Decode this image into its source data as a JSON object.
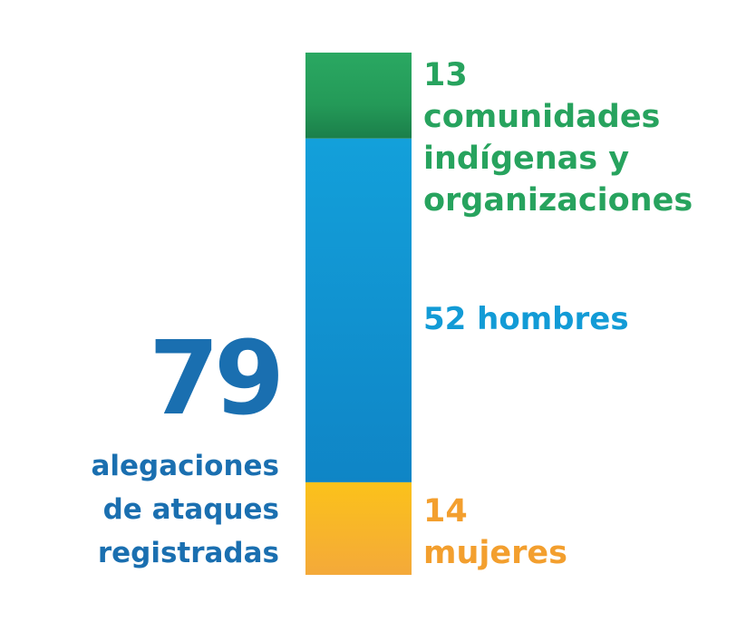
{
  "total": {
    "value": "79",
    "caption_lines": [
      "alegaciones",
      "de ataques",
      "registradas"
    ],
    "color": "#1a6fb0"
  },
  "chart_data": {
    "type": "bar",
    "stacked": true,
    "orientation": "vertical",
    "total": 79,
    "categories": [
      "comunidades indígenas y organizaciones",
      "hombres",
      "mujeres"
    ],
    "values": [
      13,
      52,
      14
    ],
    "labels": [
      {
        "number": "13",
        "lines": [
          "comunidades",
          "indígenas y",
          "organizaciones"
        ]
      },
      {
        "number": "52",
        "lines": [
          "hombres"
        ]
      },
      {
        "number": "14",
        "lines": [
          "mujeres"
        ]
      }
    ],
    "stack_order_top_to_bottom": [
      "comunidades indígenas y organizaciones",
      "hombres",
      "mujeres"
    ],
    "colors": {
      "comunidades indígenas y organizaciones": "#27a35e",
      "hombres": "#129bd6",
      "mujeres": "#f6b92a"
    },
    "label_colors": {
      "comunidades indígenas y organizaciones": "#27a35e",
      "hombres": "#129bd6",
      "mujeres": "#f39f2e"
    },
    "axes": false,
    "grid": false,
    "legend": "none"
  }
}
